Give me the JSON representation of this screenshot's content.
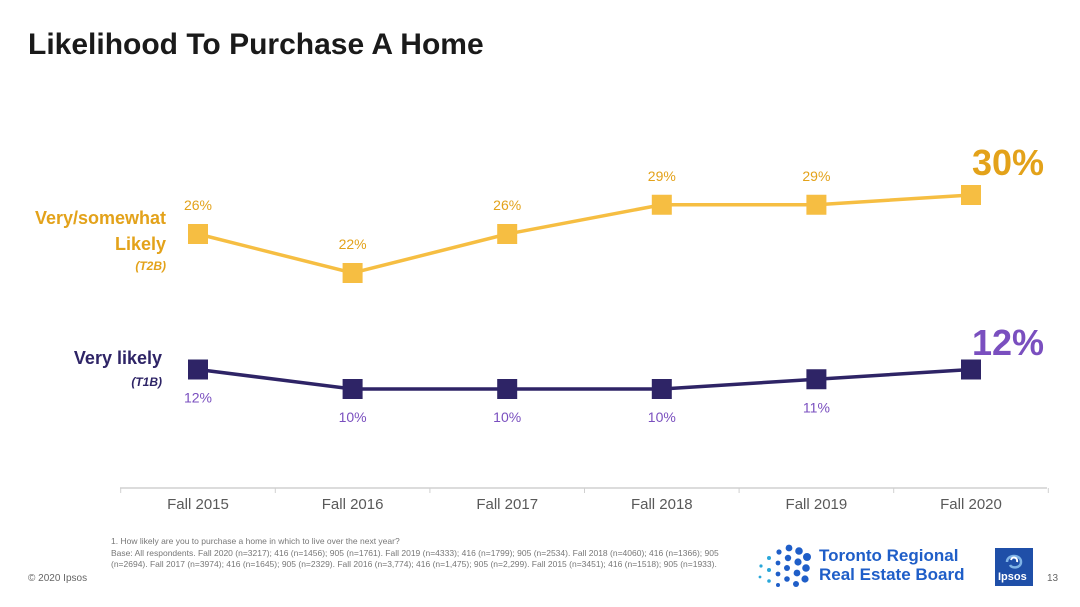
{
  "title": "Likelihood To Purchase A Home",
  "series_labels": {
    "t2b_line1": "Very/somewhat",
    "t2b_line2": "Likely",
    "t2b_line3": "(T2B)",
    "t1b_line1": "Very likely",
    "t1b_line2": "(T1B)"
  },
  "highlights": {
    "t2b": "30%",
    "t1b": "12%"
  },
  "colors": {
    "t2b": "#F6BE42",
    "t2b_label": "#E3A21A",
    "t1b": "#2E2466",
    "t1b_label": "#7A4FBF",
    "axis": "#d0d0d0"
  },
  "chart_data": {
    "type": "line",
    "categories": [
      "Fall 2015",
      "Fall 2016",
      "Fall 2017",
      "Fall 2018",
      "Fall 2019",
      "Fall 2020"
    ],
    "series": [
      {
        "name": "Very/somewhat Likely (T2B)",
        "values": [
          26,
          22,
          26,
          29,
          29,
          30
        ],
        "labels": [
          "26%",
          "22%",
          "26%",
          "29%",
          "29%",
          ""
        ]
      },
      {
        "name": "Very likely (T1B)",
        "values": [
          12,
          10,
          10,
          10,
          11,
          12
        ],
        "labels": [
          "12%",
          "10%",
          "10%",
          "10%",
          "11%",
          ""
        ]
      }
    ]
  },
  "footnote": {
    "line1": "1. How likely are you to purchase a home in which to live over the next year?",
    "line2": "Base: All respondents. Fall 2020 (n=3217); 416 (n=1456); 905 (n=1761). Fall 2019 (n=4333); 416 (n=1799); 905 (n=2534). Fall 2018 (n=4060); 416 (n=1366); 905 (n=2694). Fall 2017 (n=3974); 416 (n=1645); 905 (n=2329). Fall 2016 (n=3,774); 416 (n=1,475); 905 (n=2,299). Fall 2015 (n=3451); 416 (n=1518); 905 (n=1933)."
  },
  "copyright": "© 2020 Ipsos",
  "logo": {
    "line1": "Toronto Regional",
    "line2": "Real Estate Board"
  },
  "ipsos_logo": "Ipsos",
  "page_number": "13"
}
